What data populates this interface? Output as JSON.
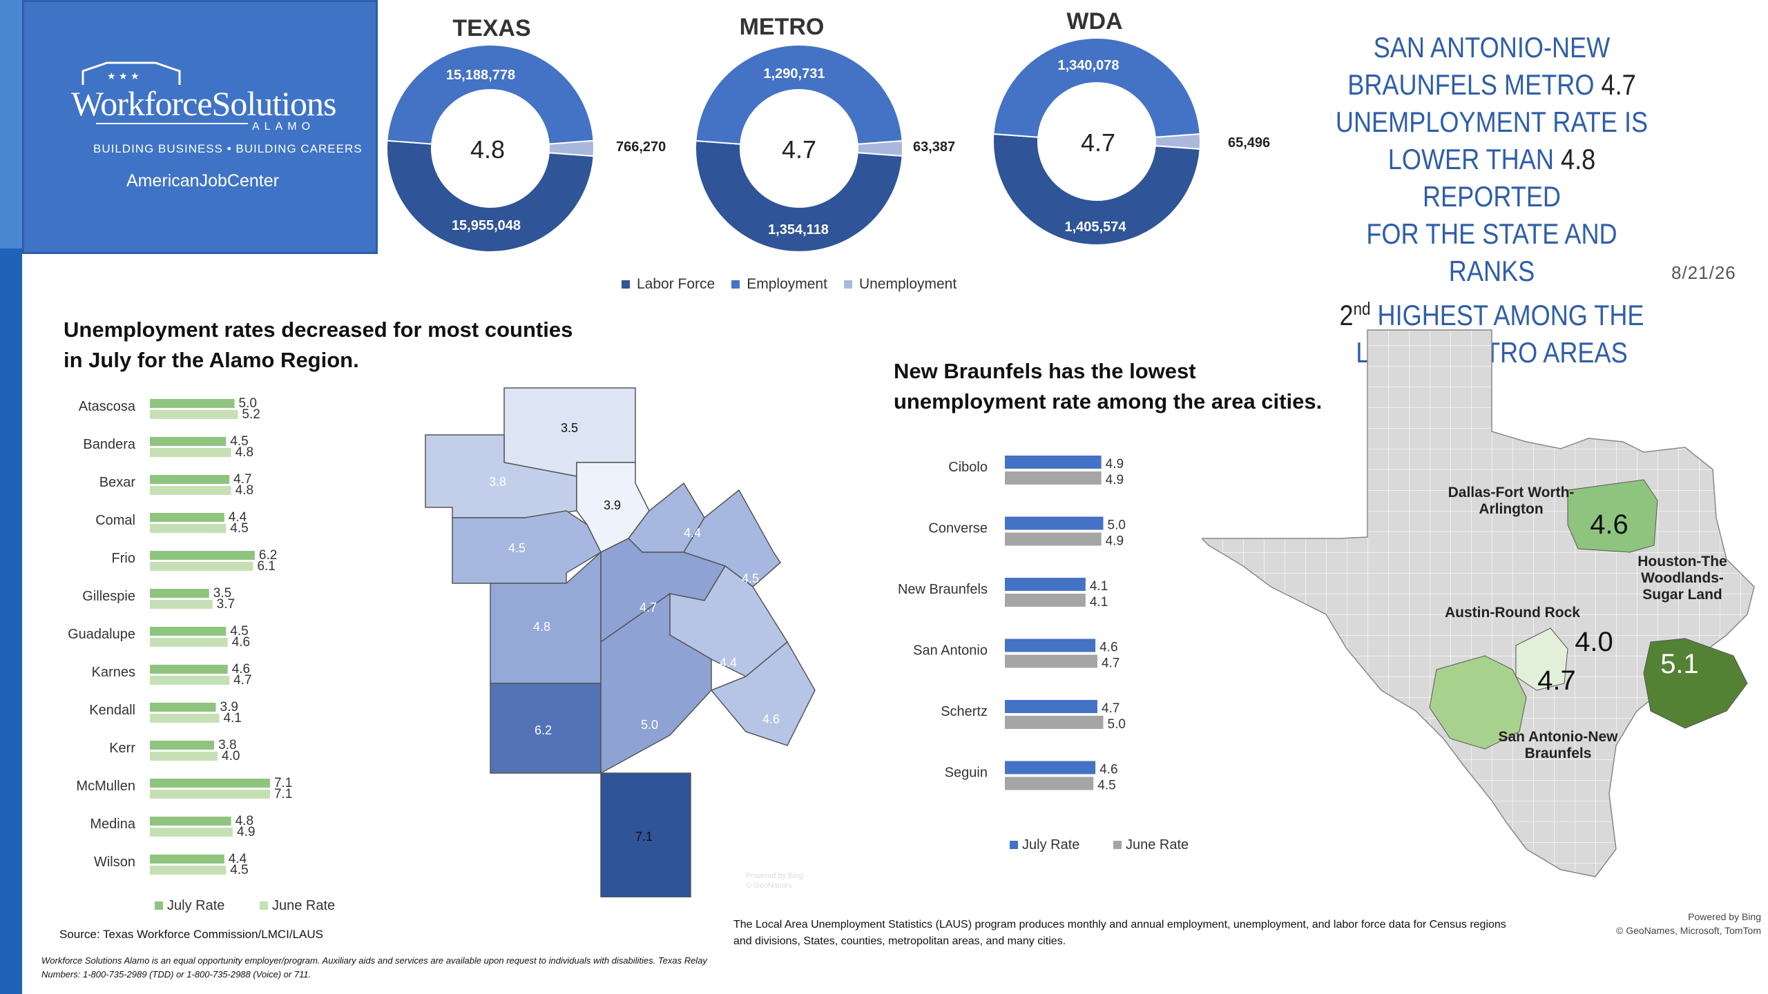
{
  "logo": {
    "name": "WorkforceSolutions",
    "sub": "ALAMO",
    "tagline": "BUILDING BUSINESS • BUILDING CAREERS",
    "ajc": "AmericanJobCenter"
  },
  "donuts": {
    "legend": [
      "Labor Force",
      "Employment",
      "Unemployment"
    ],
    "colors": {
      "labor_force": "#2f5497",
      "employment": "#4472c4",
      "unemployment": "#a9b8dc"
    },
    "items": [
      {
        "title": "TEXAS",
        "labor_force": "15,955,048",
        "employment": "15,188,778",
        "unemployment": "766,270",
        "rate": "4.8"
      },
      {
        "title": "METRO",
        "labor_force": "1,354,118",
        "employment": "1,290,731",
        "unemployment": "63,387",
        "rate": "4.7"
      },
      {
        "title": "WDA",
        "labor_force": "1,405,574",
        "employment": "1,340,078",
        "unemployment": "65,496",
        "rate": "4.7"
      }
    ]
  },
  "headline": {
    "line1": "SAN ANTONIO-NEW",
    "line2a": "BRAUNFELS METRO ",
    "line2b": "4.7",
    "line3": "UNEMPLOYMENT RATE IS",
    "line4a": "LOWER THAN ",
    "line4b": "4.8",
    "line4c": " REPORTED",
    "line5": "FOR THE STATE AND RANKS",
    "line6a": "2",
    "line6sup": "nd",
    "line6b": " HIGHEST AMONG THE",
    "line7": "LARGE METRO AREAS"
  },
  "date": "8/21/26",
  "county_section": {
    "title_line1": "Unemployment rates decreased for most counties",
    "title_line2": "in July for the Alamo Region.",
    "source": "Source: Texas Workforce Commission/LMCI/LAUS"
  },
  "city_section": {
    "title_line1": "New Braunfels has the lowest",
    "title_line2": "unemployment rate among the area cities."
  },
  "laus_note_line1": "The Local Area Unemployment Statistics (LAUS) program produces monthly and annual employment, unemployment, and labor force data for Census regions",
  "laus_note_line2": "and divisions, States, counties, metropolitan areas, and many cities.",
  "disclaimer_line1": "Workforce Solutions Alamo is an equal opportunity employer/program. Auxiliary aids and services are available upon request to individuals with disabilities. Texas Relay",
  "disclaimer_line2": "Numbers: 1-800-735-2989 (TDD) or 1-800-735-2988 (Voice) or 711.",
  "bing_map1": "Powered by Bing\n© GeoNames",
  "bing_map2_line1": "Powered by Bing",
  "bing_map2_line2": "© GeoNames, Microsoft, TomTom",
  "county_map_values": [
    "3.5",
    "3.8",
    "3.9",
    "4.4",
    "4.5",
    "4.5",
    "4.7",
    "4.8",
    "4.4",
    "6.2",
    "5.0",
    "4.6",
    "7.1"
  ],
  "texas_map": {
    "labels": [
      {
        "name": "Dallas-Fort Worth-Arlington",
        "line1": "Dallas-Fort Worth-",
        "line2": "Arlington",
        "value": "4.6"
      },
      {
        "name": "Houston-The Woodlands-Sugar Land",
        "line1": "Houston-The",
        "line2": "Woodlands-",
        "line3": "Sugar Land",
        "value": "5.1"
      },
      {
        "name": "Austin-Round Rock",
        "line1": "Austin-Round Rock",
        "value": "4.0"
      },
      {
        "name": "San Antonio-New Braunfels",
        "line1": "San Antonio-New",
        "line2": "Braunfels",
        "value": "4.7"
      }
    ]
  },
  "chart_data": [
    {
      "type": "bar",
      "title": "Unemployment rates decreased for most counties in July for the Alamo Region.",
      "categories": [
        "Atascosa",
        "Bandera",
        "Bexar",
        "Comal",
        "Frio",
        "Gillespie",
        "Guadalupe",
        "Karnes",
        "Kendall",
        "Kerr",
        "McMullen",
        "Medina",
        "Wilson"
      ],
      "series": [
        {
          "name": "July Rate",
          "values": [
            5.0,
            4.5,
            4.7,
            4.4,
            6.2,
            3.5,
            4.5,
            4.6,
            3.9,
            3.8,
            7.1,
            4.8,
            4.4
          ],
          "labels": [
            "5.0",
            "4.5",
            "4.7",
            "4.4",
            "6.2",
            "3.5",
            "4.5",
            "4.6",
            "3.9",
            "3.8",
            "7.1",
            "4.8",
            "4.4"
          ],
          "color": "#8fc47f"
        },
        {
          "name": "June Rate",
          "values": [
            5.2,
            4.8,
            4.8,
            4.5,
            6.1,
            3.7,
            4.6,
            4.7,
            4.1,
            4.0,
            7.1,
            4.9,
            4.5
          ],
          "labels": [
            "5.2",
            "4.8",
            "4.8",
            "4.5",
            "6.1",
            "3.7",
            "4.6",
            "4.7",
            "4.1",
            "4.0",
            "7.1",
            "4.9",
            "4.5"
          ],
          "color": "#c5e0b4"
        }
      ],
      "orientation": "horizontal",
      "legend": "bottom"
    },
    {
      "type": "bar",
      "title": "New Braunfels has the lowest unemployment rate among the area cities.",
      "categories": [
        "Cibolo",
        "Converse",
        "New Braunfels",
        "San Antonio",
        "Schertz",
        "Seguin"
      ],
      "series": [
        {
          "name": "July Rate",
          "values": [
            4.9,
            5.0,
            4.1,
            4.6,
            4.7,
            4.6
          ],
          "labels": [
            "4.9",
            "5.0",
            "4.1",
            "4.6",
            "4.7",
            "4.6"
          ],
          "color": "#4472c4"
        },
        {
          "name": "June Rate",
          "values": [
            4.9,
            4.9,
            4.1,
            4.7,
            5.0,
            4.5
          ],
          "labels": [
            "4.9",
            "4.9",
            "4.1",
            "4.7",
            "5.0",
            "4.5"
          ],
          "color": "#a5a5a5"
        }
      ],
      "orientation": "horizontal",
      "legend": "bottom"
    },
    {
      "type": "pie",
      "title": "TEXAS",
      "center_label": "4.8",
      "series": [
        {
          "name": "Labor Force",
          "value": 15955048
        },
        {
          "name": "Employment",
          "value": 15188778
        },
        {
          "name": "Unemployment",
          "value": 766270
        }
      ]
    },
    {
      "type": "pie",
      "title": "METRO",
      "center_label": "4.7",
      "series": [
        {
          "name": "Labor Force",
          "value": 1354118
        },
        {
          "name": "Employment",
          "value": 1290731
        },
        {
          "name": "Unemployment",
          "value": 63387
        }
      ]
    },
    {
      "type": "pie",
      "title": "WDA",
      "center_label": "4.7",
      "series": [
        {
          "name": "Labor Force",
          "value": 1405574
        },
        {
          "name": "Employment",
          "value": 1340078
        },
        {
          "name": "Unemployment",
          "value": 65496
        }
      ]
    }
  ]
}
